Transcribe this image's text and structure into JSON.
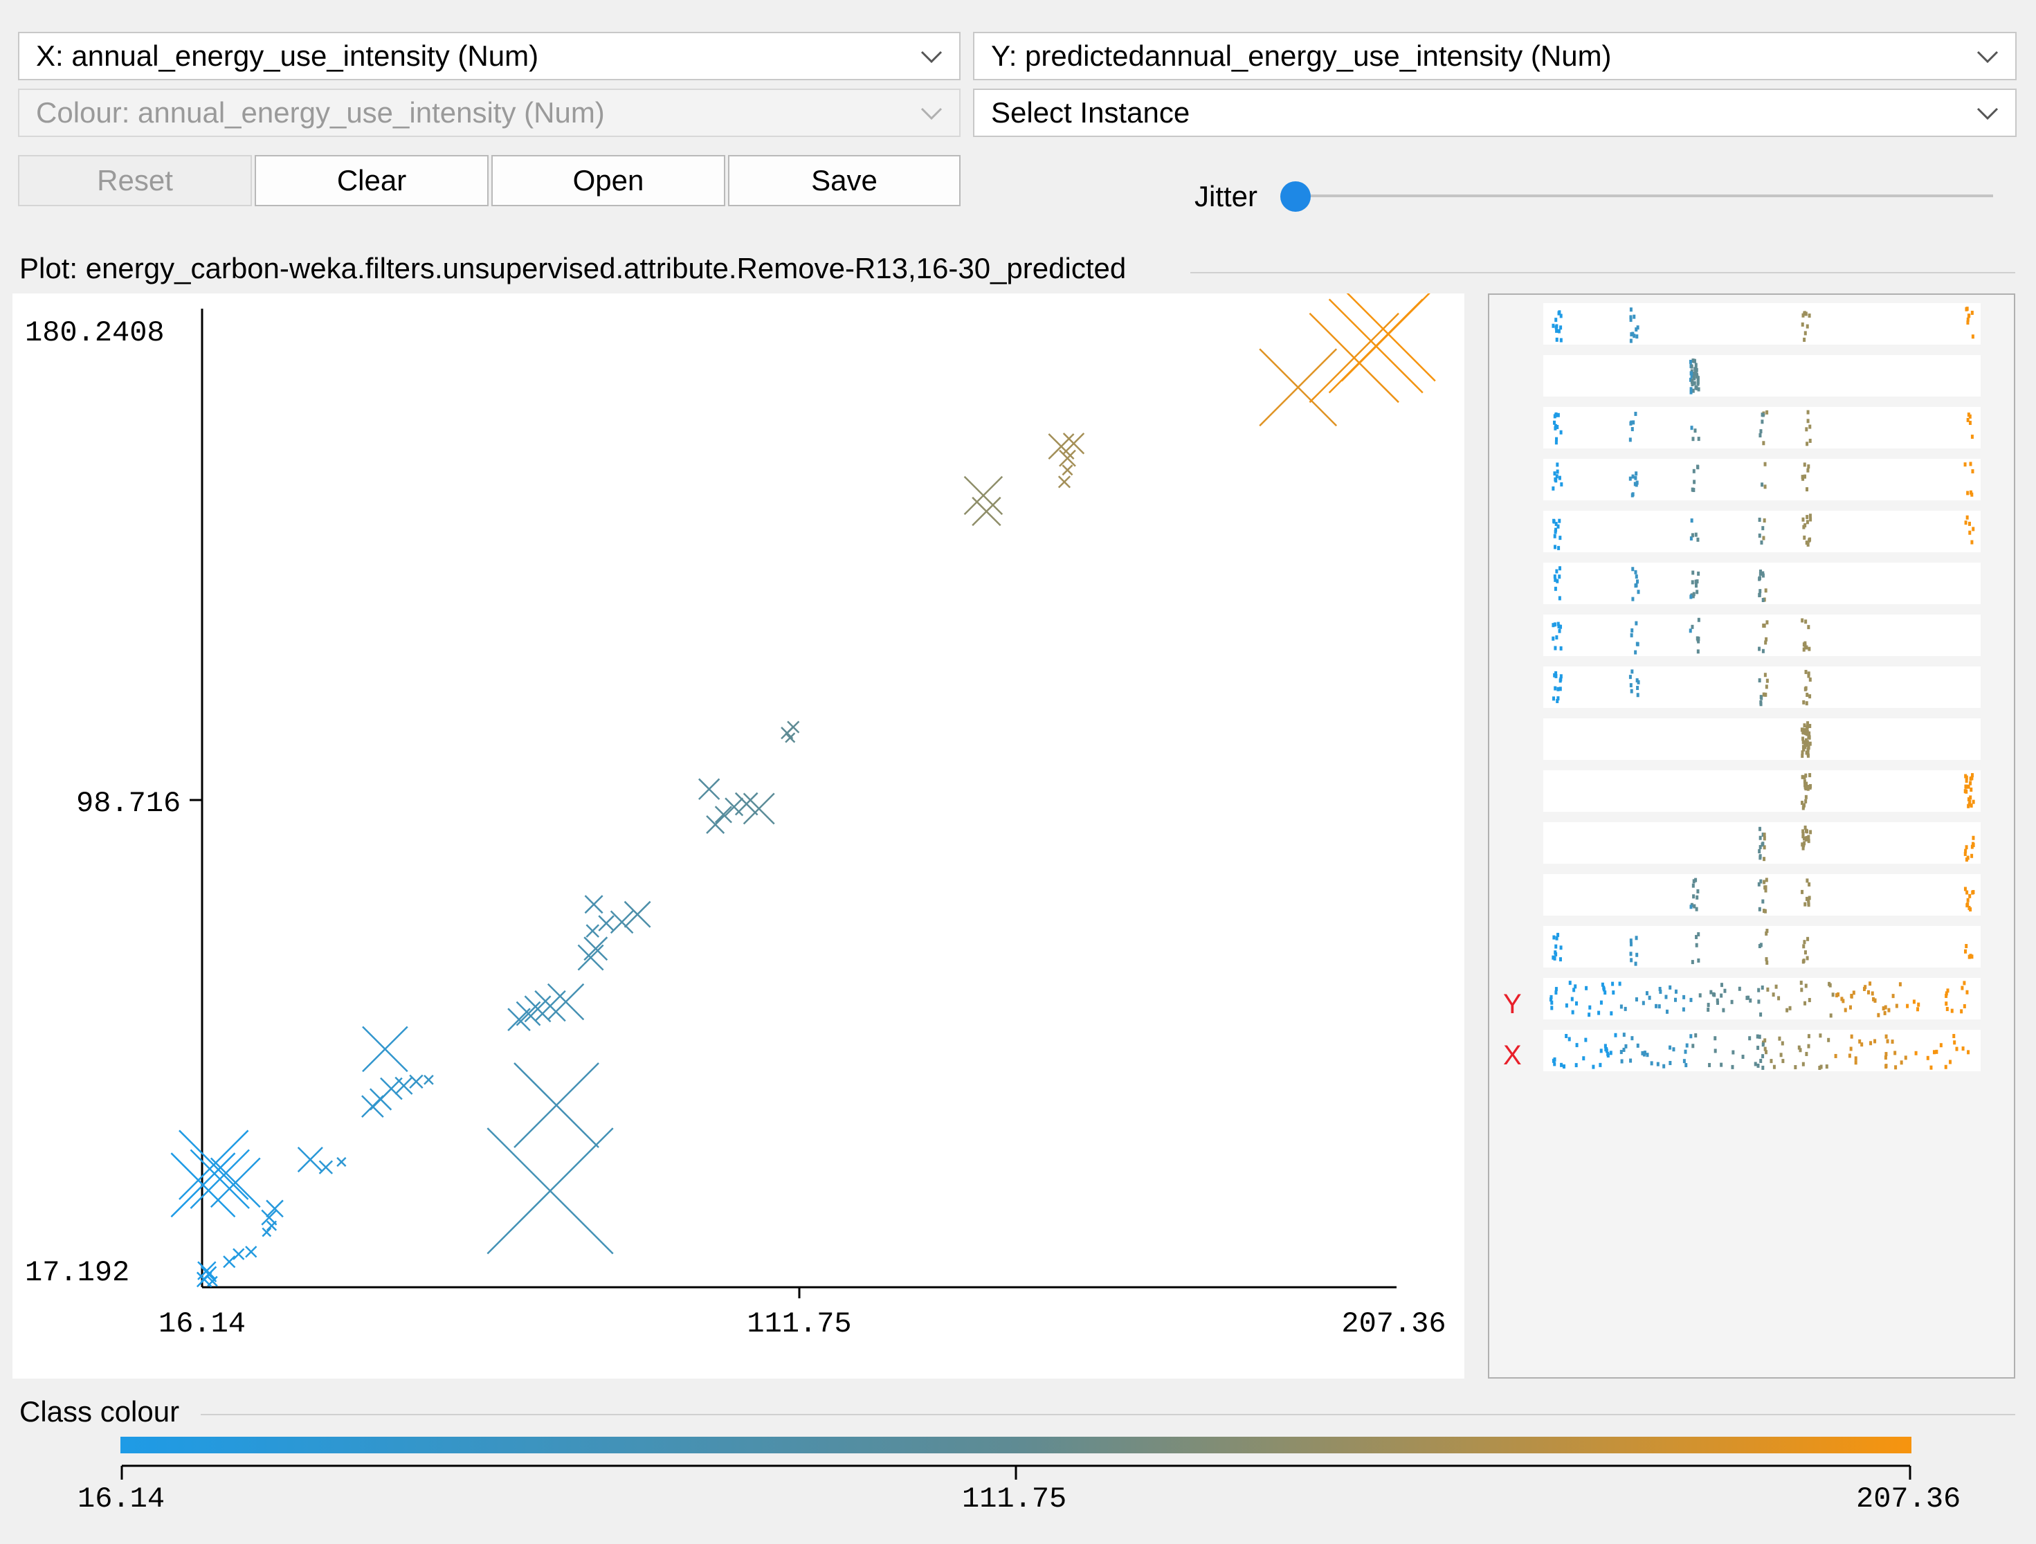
{
  "controls": {
    "x_axis_select": "X: annual_energy_use_intensity (Num)",
    "y_axis_select": "Y: predictedannual_energy_use_intensity (Num)",
    "colour_select": "Colour: annual_energy_use_intensity (Num)",
    "instance_select": "Select Instance",
    "reset_label": "Reset",
    "clear_label": "Clear",
    "open_label": "Open",
    "save_label": "Save",
    "jitter_label": "Jitter",
    "jitter_value": 0
  },
  "plot": {
    "title": "Plot: energy_carbon-weka.filters.unsupervised.attribute.Remove-R13,16-30_predicted"
  },
  "chart_data": {
    "type": "scatter",
    "title": "Plot: energy_carbon-weka.filters.unsupervised.attribute.Remove-R13,16-30_predicted",
    "xlabel": "annual_energy_use_intensity",
    "ylabel": "predictedannual_energy_use_intensity",
    "xlim": [
      16.14,
      207.36
    ],
    "ylim": [
      17.192,
      180.2408
    ],
    "x_ticks": [
      "16.14",
      "111.75",
      "207.36"
    ],
    "y_ticks": [
      "180.2408",
      "98.716",
      "17.192"
    ],
    "marker": "x",
    "points": [
      {
        "x": 16.5,
        "y": 18.5
      },
      {
        "x": 17.2,
        "y": 19.4
      },
      {
        "x": 17.8,
        "y": 18.2
      },
      {
        "x": 16.9,
        "y": 20.0
      },
      {
        "x": 20.5,
        "y": 21.5
      },
      {
        "x": 22.0,
        "y": 22.8
      },
      {
        "x": 24.0,
        "y": 23.2
      },
      {
        "x": 26.5,
        "y": 26.5
      },
      {
        "x": 27.3,
        "y": 27.6
      },
      {
        "x": 26.9,
        "y": 29.0
      },
      {
        "x": 27.8,
        "y": 30.5
      },
      {
        "x": 16.3,
        "y": 34.5
      },
      {
        "x": 19.0,
        "y": 35.5
      },
      {
        "x": 21.5,
        "y": 34.9
      },
      {
        "x": 18.0,
        "y": 37.9
      },
      {
        "x": 33.5,
        "y": 38.8
      },
      {
        "x": 36.0,
        "y": 37.5
      },
      {
        "x": 38.5,
        "y": 38.4
      },
      {
        "x": 43.5,
        "y": 47.8
      },
      {
        "x": 44.8,
        "y": 49.0
      },
      {
        "x": 46.5,
        "y": 50.8
      },
      {
        "x": 48.5,
        "y": 51.3
      },
      {
        "x": 50.5,
        "y": 52.0
      },
      {
        "x": 52.5,
        "y": 52.3
      },
      {
        "x": 45.5,
        "y": 57.5
      },
      {
        "x": 73.0,
        "y": 48.0
      },
      {
        "x": 72.0,
        "y": 33.5
      },
      {
        "x": 67.0,
        "y": 62.5
      },
      {
        "x": 68.5,
        "y": 63.5
      },
      {
        "x": 70.0,
        "y": 64.3
      },
      {
        "x": 72.0,
        "y": 64.8
      },
      {
        "x": 74.5,
        "y": 65.5
      },
      {
        "x": 78.5,
        "y": 73.0
      },
      {
        "x": 79.3,
        "y": 74.5
      },
      {
        "x": 78.8,
        "y": 77.5
      },
      {
        "x": 81.0,
        "y": 78.8
      },
      {
        "x": 83.5,
        "y": 79.0
      },
      {
        "x": 86.0,
        "y": 80.3
      },
      {
        "x": 79.0,
        "y": 82.0
      },
      {
        "x": 98.5,
        "y": 95.5
      },
      {
        "x": 99.8,
        "y": 97.2
      },
      {
        "x": 101.5,
        "y": 98.5
      },
      {
        "x": 103.5,
        "y": 99.0
      },
      {
        "x": 105.5,
        "y": 98.2
      },
      {
        "x": 97.5,
        "y": 101.5
      },
      {
        "x": 110.0,
        "y": 111.0
      },
      {
        "x": 111.0,
        "y": 112.0
      },
      {
        "x": 110.5,
        "y": 110.2
      },
      {
        "x": 141.5,
        "y": 151.2
      },
      {
        "x": 142.0,
        "y": 148.5
      },
      {
        "x": 154.0,
        "y": 159.5
      },
      {
        "x": 155.0,
        "y": 157.5
      },
      {
        "x": 155.0,
        "y": 155.5
      },
      {
        "x": 154.5,
        "y": 153.5
      },
      {
        "x": 156.0,
        "y": 160.0
      },
      {
        "x": 192.0,
        "y": 169.5
      },
      {
        "x": 201.0,
        "y": 174.5
      },
      {
        "x": 204.5,
        "y": 176.5
      },
      {
        "x": 206.5,
        "y": 178.5
      }
    ],
    "colour_scale": {
      "low": "#1e9be6",
      "mid": "#5f8b93",
      "high": "#f7940e"
    }
  },
  "matrix": {
    "y_label": "Y",
    "x_label": "X"
  },
  "class_colour": {
    "title": "Class colour",
    "min_label": "16.14",
    "mid_label": "111.75",
    "max_label": "207.36"
  }
}
